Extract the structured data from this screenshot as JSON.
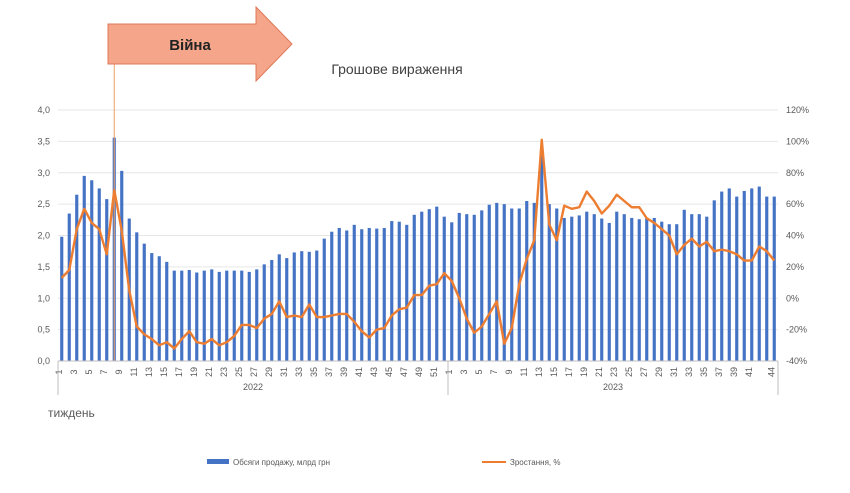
{
  "annotation": {
    "label": "Війна",
    "week_index": 8
  },
  "colors": {
    "bars": "#4472c4",
    "line": "#ed7d31",
    "arrow_fill": "#f4a58a",
    "arrow_stroke": "#e0785a",
    "marker_line": "#f0a060",
    "axis": "#bfbfbf"
  },
  "chart_data": {
    "type": "bar+line",
    "title": "Грошове вираження",
    "xlabel": "тиждень",
    "years": [
      {
        "label": "2022",
        "weeks": 52
      },
      {
        "label": "2023",
        "weeks": 44
      }
    ],
    "tick_labels": [
      "1",
      "3",
      "5",
      "7",
      "9",
      "11",
      "13",
      "15",
      "17",
      "19",
      "21",
      "23",
      "25",
      "27",
      "29",
      "31",
      "33",
      "35",
      "37",
      "39",
      "41",
      "43",
      "45",
      "47",
      "49",
      "51",
      "1",
      "3",
      "5",
      "7",
      "9",
      "11",
      "13",
      "15",
      "17",
      "19",
      "21",
      "23",
      "25",
      "27",
      "29",
      "31",
      "33",
      "35",
      "37",
      "39",
      "41",
      "44"
    ],
    "y_left": {
      "min": 0,
      "max": 4,
      "ticks": [
        "0,0",
        "0,5",
        "1,0",
        "1,5",
        "2,0",
        "2,5",
        "3,0",
        "3,5",
        "4,0"
      ]
    },
    "y_right": {
      "min": -40,
      "max": 120,
      "ticks": [
        "-40%",
        "-20%",
        "0%",
        "20%",
        "40%",
        "60%",
        "80%",
        "100%",
        "120%"
      ]
    },
    "series": [
      {
        "name": "Обсяги продажу, млрд грн",
        "type": "bar",
        "axis": "left",
        "values": [
          1.98,
          2.35,
          2.65,
          2.95,
          2.88,
          2.75,
          2.58,
          3.56,
          3.03,
          2.27,
          2.05,
          1.87,
          1.72,
          1.67,
          1.58,
          1.44,
          1.44,
          1.45,
          1.41,
          1.44,
          1.46,
          1.42,
          1.44,
          1.44,
          1.44,
          1.42,
          1.46,
          1.54,
          1.61,
          1.7,
          1.64,
          1.73,
          1.75,
          1.74,
          1.76,
          1.95,
          2.06,
          2.12,
          2.08,
          2.17,
          2.1,
          2.12,
          2.11,
          2.12,
          2.23,
          2.22,
          2.17,
          2.33,
          2.38,
          2.42,
          2.46,
          2.3,
          2.21,
          2.36,
          2.34,
          2.33,
          2.4,
          2.49,
          2.52,
          2.5,
          2.43,
          2.43,
          2.55,
          2.52,
          3.3,
          2.5,
          2.43,
          2.28,
          2.3,
          2.32,
          2.38,
          2.34,
          2.27,
          2.2,
          2.38,
          2.34,
          2.28,
          2.26,
          2.28,
          2.28,
          2.22,
          2.18,
          2.18,
          2.41,
          2.34,
          2.34,
          2.3,
          2.56,
          2.7,
          2.75,
          2.62,
          2.71,
          2.75,
          2.78,
          2.62,
          2.62
        ]
      },
      {
        "name": "Зростання, %",
        "type": "line",
        "axis": "right",
        "values": [
          13,
          18,
          44,
          57,
          48,
          44,
          28,
          69,
          43,
          5,
          -18,
          -23,
          -26,
          -30,
          -28,
          -32,
          -26,
          -21,
          -28,
          -29,
          -26,
          -30,
          -28,
          -24,
          -17,
          -17,
          -19,
          -13,
          -10,
          -2,
          -12,
          -11,
          -12,
          -4,
          -12,
          -12,
          -11,
          -10,
          -10,
          -15,
          -21,
          -25,
          -20,
          -19,
          -11,
          -7,
          -6,
          2,
          2,
          8,
          9,
          16,
          11,
          0,
          -13,
          -22,
          -18,
          -10,
          -2,
          -29,
          -19,
          9,
          25,
          37,
          101,
          47,
          37,
          59,
          57,
          58,
          68,
          62,
          54,
          59,
          66,
          62,
          58,
          58,
          51,
          48,
          44,
          40,
          28,
          34,
          38,
          33,
          36,
          30,
          31,
          30,
          28,
          24,
          24,
          33,
          30,
          24
        ]
      }
    ],
    "legend_position": "bottom"
  }
}
